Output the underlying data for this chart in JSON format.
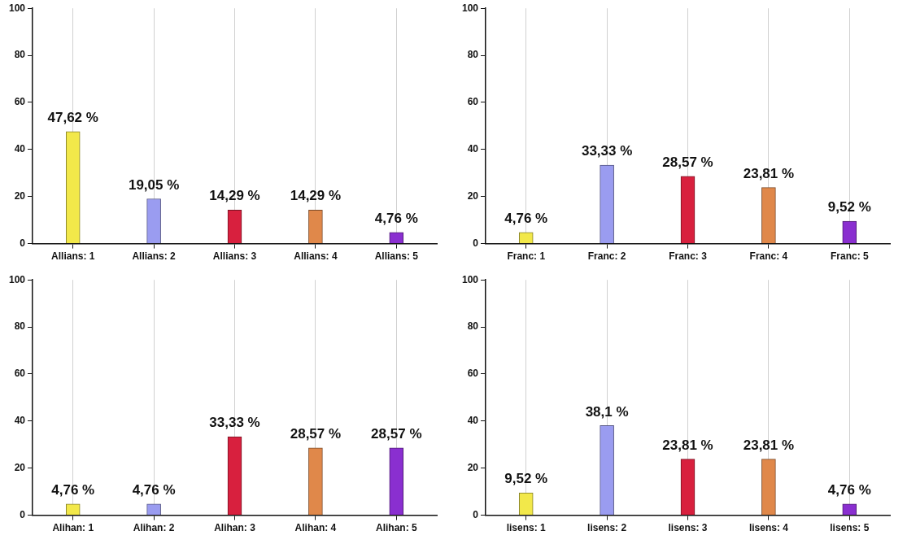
{
  "chart_data": [
    {
      "type": "bar",
      "categories": [
        "Allians: 1",
        "Allians: 2",
        "Allians: 3",
        "Allians: 4",
        "Allians: 5"
      ],
      "values": [
        47.62,
        19.05,
        14.29,
        14.29,
        4.76
      ],
      "colors": [
        "#f2e84a",
        "#9a9cf0",
        "#d8203e",
        "#e0884a",
        "#8a2fd0"
      ],
      "value_labels": [
        "47,62 %",
        "19,05 %",
        "14,29 %",
        "14,29 %",
        "4,76 %"
      ],
      "ylim": [
        0,
        100
      ],
      "yticks": [
        0,
        20,
        40,
        60,
        80,
        100
      ],
      "grid": "x",
      "legend": false
    },
    {
      "type": "bar",
      "categories": [
        "Franc: 1",
        "Franc: 2",
        "Franc: 3",
        "Franc: 4",
        "Franc: 5"
      ],
      "values": [
        4.76,
        33.33,
        28.57,
        23.81,
        9.52
      ],
      "colors": [
        "#f2e84a",
        "#9a9cf0",
        "#d8203e",
        "#e0884a",
        "#8a2fd0"
      ],
      "value_labels": [
        "4,76 %",
        "33,33 %",
        "28,57 %",
        "23,81 %",
        "9,52 %"
      ],
      "ylim": [
        0,
        100
      ],
      "yticks": [
        0,
        20,
        40,
        60,
        80,
        100
      ],
      "grid": "x",
      "legend": false
    },
    {
      "type": "bar",
      "categories": [
        "Alihan: 1",
        "Alihan: 2",
        "Alihan: 3",
        "Alihan: 4",
        "Alihan: 5"
      ],
      "values": [
        4.76,
        4.76,
        33.33,
        28.57,
        28.57
      ],
      "colors": [
        "#f2e84a",
        "#9a9cf0",
        "#d8203e",
        "#e0884a",
        "#8a2fd0"
      ],
      "value_labels": [
        "4,76 %",
        "4,76 %",
        "33,33 %",
        "28,57 %",
        "28,57 %"
      ],
      "ylim": [
        0,
        100
      ],
      "yticks": [
        0,
        20,
        40,
        60,
        80,
        100
      ],
      "grid": "x",
      "legend": false
    },
    {
      "type": "bar",
      "categories": [
        "lisens: 1",
        "lisens: 2",
        "lisens: 3",
        "lisens: 4",
        "lisens: 5"
      ],
      "values": [
        9.52,
        38.1,
        23.81,
        23.81,
        4.76
      ],
      "colors": [
        "#f2e84a",
        "#9a9cf0",
        "#d8203e",
        "#e0884a",
        "#8a2fd0"
      ],
      "value_labels": [
        "9,52 %",
        "38,1 %",
        "23,81 %",
        "23,81 %",
        "4,76 %"
      ],
      "ylim": [
        0,
        100
      ],
      "yticks": [
        0,
        20,
        40,
        60,
        80,
        100
      ],
      "grid": "x",
      "legend": false
    }
  ]
}
